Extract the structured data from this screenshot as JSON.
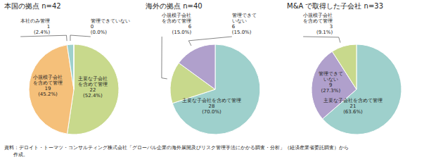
{
  "chart_data": [
    {
      "type": "pie",
      "title": "本国の拠点 n=42",
      "categories": [
        "主要な子会社\nを含めて管理",
        "小規模子会社\nを含めて管理",
        "本社のみ管理",
        "管理できていない"
      ],
      "values": [
        22,
        19,
        1,
        0.01
      ],
      "value_labels": [
        "22\n(52.4%)",
        "19\n(45.2%)",
        "1\n(2.4%)",
        "0\n(0.0%)"
      ],
      "colors": [
        "#c8d98c",
        "#f5c07a",
        "#9ed0cc",
        "#e8e8e8"
      ],
      "data_labels": true
    },
    {
      "type": "pie",
      "title": "海外の拠点 n=40",
      "categories": [
        "主要な子会社を含めて管理",
        "小規模子会社\nを含めて管理",
        "管理できて\nいない"
      ],
      "values": [
        28,
        6,
        6
      ],
      "value_labels": [
        "28\n(70.0%)",
        "6\n(15.0%)",
        "6\n(15.0%)"
      ],
      "colors": [
        "#9ed0cc",
        "#c8d98c",
        "#b0a0cc"
      ],
      "data_labels": true
    },
    {
      "type": "pie",
      "title": "M&A で取得した子会社 n=33",
      "categories": [
        "主要な子会社を含めて管理",
        "管理できて\nいない",
        "小規模子会社\nを含めて管理"
      ],
      "values": [
        21,
        9,
        3
      ],
      "value_labels": [
        "21\n(63.6%)",
        "9\n(27.3%)",
        "3\n(9.1%)"
      ],
      "colors": [
        "#9ed0cc",
        "#b0a0cc",
        "#c8d98c"
      ],
      "data_labels": true
    }
  ],
  "footnote": "資料：デロイト・トーマツ・コンサルティング株式会社「グローバル企業の海外展開及びリスク管理手法にかかる調査・分析」（経済産業省委託調査）から\n      作成。"
}
